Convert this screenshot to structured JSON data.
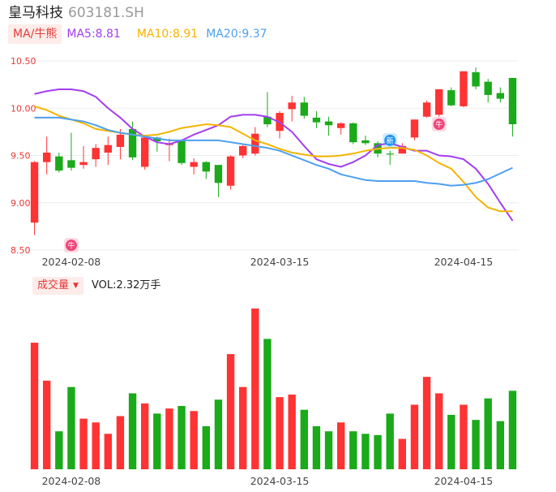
{
  "header": {
    "stock_name": "皇马科技",
    "stock_code": "603181.SH"
  },
  "indicators": {
    "ma_badge": "MA/牛熊",
    "ma5_label": "MA5:8.81",
    "ma10_label": "MA10:8.91",
    "ma20_label": "MA20:9.37"
  },
  "volume_header": {
    "badge": "成交量",
    "text": "VOL:2.32万手"
  },
  "colors": {
    "up": "#ff3333",
    "down": "#1aaa1a",
    "ma5": "#a33ef0",
    "ma10": "#f5b400",
    "ma20": "#4d9ff0"
  },
  "chart_data": {
    "type": "candlestick",
    "y_ticks": [
      "10.50",
      "10.00",
      "9.50",
      "9.00",
      "8.50"
    ],
    "y_tick_values": [
      10.5,
      10.0,
      9.5,
      9.0,
      8.5
    ],
    "ylim": [
      8.5,
      10.5
    ],
    "x_tick_labels": [
      "2024-02-08",
      "2024-03-15",
      "2024-04-15"
    ],
    "x_tick_indices": [
      3,
      20,
      35
    ],
    "candles": [
      {
        "o": 8.79,
        "c": 9.43,
        "h": 9.44,
        "l": 8.66,
        "v": 100
      },
      {
        "o": 9.43,
        "c": 9.53,
        "h": 9.7,
        "l": 9.3,
        "v": 70
      },
      {
        "o": 9.49,
        "c": 9.34,
        "h": 9.53,
        "l": 9.32,
        "v": 30
      },
      {
        "o": 9.45,
        "c": 9.37,
        "h": 9.74,
        "l": 9.34,
        "v": 65
      },
      {
        "o": 9.4,
        "c": 9.43,
        "h": 9.6,
        "l": 9.36,
        "v": 40
      },
      {
        "o": 9.46,
        "c": 9.58,
        "h": 9.62,
        "l": 9.38,
        "v": 37
      },
      {
        "o": 9.53,
        "c": 9.61,
        "h": 9.7,
        "l": 9.4,
        "v": 28
      },
      {
        "o": 9.59,
        "c": 9.72,
        "h": 9.78,
        "l": 9.46,
        "v": 42
      },
      {
        "o": 9.78,
        "c": 9.48,
        "h": 9.86,
        "l": 9.45,
        "v": 60
      },
      {
        "o": 9.38,
        "c": 9.69,
        "h": 9.7,
        "l": 9.35,
        "v": 52
      },
      {
        "o": 9.69,
        "c": 9.65,
        "h": 9.7,
        "l": 9.54,
        "v": 44
      },
      {
        "o": 9.61,
        "c": 9.63,
        "h": 9.68,
        "l": 9.44,
        "v": 48
      },
      {
        "o": 9.66,
        "c": 9.42,
        "h": 9.66,
        "l": 9.4,
        "v": 50
      },
      {
        "o": 9.38,
        "c": 9.43,
        "h": 9.47,
        "l": 9.3,
        "v": 46
      },
      {
        "o": 9.43,
        "c": 9.33,
        "h": 9.44,
        "l": 9.25,
        "v": 34
      },
      {
        "o": 9.4,
        "c": 9.21,
        "h": 9.4,
        "l": 9.06,
        "v": 55
      },
      {
        "o": 9.18,
        "c": 9.49,
        "h": 9.5,
        "l": 9.14,
        "v": 91
      },
      {
        "o": 9.5,
        "c": 9.6,
        "h": 9.61,
        "l": 9.47,
        "v": 65
      },
      {
        "o": 9.52,
        "c": 9.73,
        "h": 9.8,
        "l": 9.5,
        "v": 127
      },
      {
        "o": 9.91,
        "c": 9.83,
        "h": 10.17,
        "l": 9.8,
        "v": 103
      },
      {
        "o": 9.76,
        "c": 9.95,
        "h": 9.97,
        "l": 9.68,
        "v": 57
      },
      {
        "o": 9.99,
        "c": 10.06,
        "h": 10.13,
        "l": 9.86,
        "v": 59
      },
      {
        "o": 10.06,
        "c": 9.92,
        "h": 10.12,
        "l": 9.89,
        "v": 47
      },
      {
        "o": 9.9,
        "c": 9.85,
        "h": 9.97,
        "l": 9.79,
        "v": 34
      },
      {
        "o": 9.86,
        "c": 9.82,
        "h": 9.91,
        "l": 9.71,
        "v": 30
      },
      {
        "o": 9.79,
        "c": 9.84,
        "h": 9.85,
        "l": 9.72,
        "v": 37
      },
      {
        "o": 9.84,
        "c": 9.64,
        "h": 9.85,
        "l": 9.62,
        "v": 30
      },
      {
        "o": 9.66,
        "c": 9.63,
        "h": 9.71,
        "l": 9.61,
        "v": 28
      },
      {
        "o": 9.63,
        "c": 9.52,
        "h": 9.65,
        "l": 9.48,
        "v": 27
      },
      {
        "o": 9.52,
        "c": 9.51,
        "h": 9.55,
        "l": 9.4,
        "v": 44
      },
      {
        "o": 9.52,
        "c": 9.6,
        "h": 9.63,
        "l": 9.52,
        "v": 24
      },
      {
        "o": 9.69,
        "c": 9.88,
        "h": 9.88,
        "l": 9.66,
        "v": 51
      },
      {
        "o": 9.91,
        "c": 10.06,
        "h": 10.08,
        "l": 9.9,
        "v": 73
      },
      {
        "o": 9.93,
        "c": 10.2,
        "h": 10.2,
        "l": 9.91,
        "v": 60
      },
      {
        "o": 10.19,
        "c": 10.03,
        "h": 10.22,
        "l": 10.02,
        "v": 43
      },
      {
        "o": 10.02,
        "c": 10.39,
        "h": 10.39,
        "l": 10.01,
        "v": 51
      },
      {
        "o": 10.38,
        "c": 10.23,
        "h": 10.43,
        "l": 10.2,
        "v": 39
      },
      {
        "o": 10.28,
        "c": 10.14,
        "h": 10.31,
        "l": 10.06,
        "v": 56
      },
      {
        "o": 10.16,
        "c": 10.1,
        "h": 10.22,
        "l": 10.06,
        "v": 38
      },
      {
        "o": 10.32,
        "c": 9.83,
        "h": 10.32,
        "l": 9.7,
        "v": 62
      }
    ],
    "ma5": [
      10.15,
      10.18,
      10.2,
      10.2,
      10.18,
      10.12,
      10.0,
      9.9,
      9.78,
      9.7,
      9.64,
      9.62,
      9.66,
      9.72,
      9.77,
      9.82,
      9.91,
      9.93,
      9.93,
      9.91,
      9.85,
      9.75,
      9.6,
      9.46,
      9.41,
      9.38,
      9.43,
      9.5,
      9.61,
      9.63,
      9.59,
      9.55,
      9.55,
      9.5,
      9.49,
      9.46,
      9.36,
      9.2,
      9.0,
      8.81
    ],
    "ma10": [
      10.02,
      9.98,
      9.92,
      9.88,
      9.84,
      9.78,
      9.76,
      9.74,
      9.72,
      9.71,
      9.72,
      9.75,
      9.79,
      9.81,
      9.83,
      9.82,
      9.8,
      9.73,
      9.66,
      9.62,
      9.57,
      9.53,
      9.51,
      9.49,
      9.49,
      9.5,
      9.52,
      9.55,
      9.57,
      9.58,
      9.58,
      9.56,
      9.5,
      9.42,
      9.36,
      9.22,
      9.06,
      8.95,
      8.91,
      8.91
    ],
    "ma20": [
      9.9,
      9.9,
      9.9,
      9.88,
      9.86,
      9.82,
      9.77,
      9.74,
      9.72,
      9.7,
      9.68,
      9.66,
      9.66,
      9.66,
      9.66,
      9.66,
      9.64,
      9.62,
      9.6,
      9.58,
      9.55,
      9.5,
      9.45,
      9.4,
      9.36,
      9.3,
      9.27,
      9.24,
      9.23,
      9.23,
      9.23,
      9.23,
      9.21,
      9.2,
      9.18,
      9.19,
      9.21,
      9.25,
      9.31,
      9.37
    ],
    "markers": [
      {
        "label": "牛",
        "index": 3,
        "price": 8.55,
        "kind": "bull"
      },
      {
        "label": "新",
        "index": 29,
        "price": 9.66,
        "kind": "new"
      },
      {
        "label": "牛",
        "index": 33,
        "price": 9.83,
        "kind": "bull"
      }
    ]
  }
}
